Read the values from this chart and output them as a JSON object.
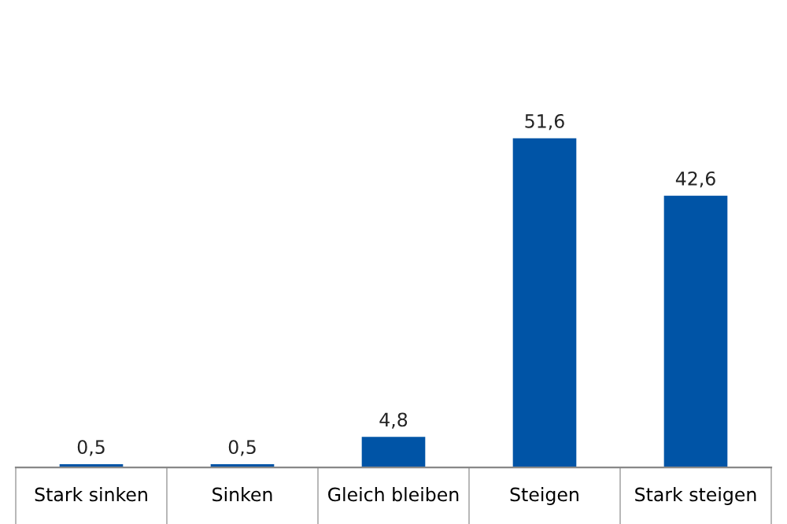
{
  "chart_data": {
    "type": "bar",
    "categories": [
      "Stark sinken",
      "Sinken",
      "Gleich bleiben",
      "Steigen",
      "Stark steigen"
    ],
    "values": [
      0.5,
      0.5,
      4.8,
      51.6,
      42.6
    ],
    "color": "#0054a6",
    "data_labels": true,
    "value_labels": [
      "0,5",
      "0,5",
      "4,8",
      "51,6",
      "42,6"
    ],
    "grid": false,
    "legend": false,
    "tick_labels": "x"
  }
}
